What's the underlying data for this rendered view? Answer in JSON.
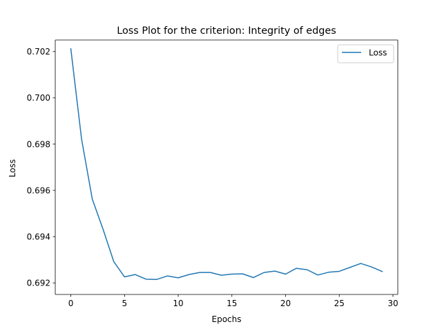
{
  "chart_data": {
    "type": "line",
    "title": "Loss Plot for the criterion: Integrity of edges",
    "xlabel": "Epochs",
    "ylabel": "Loss",
    "xlim": [
      -1.45,
      30.45
    ],
    "ylim": [
      0.6915,
      0.7025
    ],
    "x_ticks": [
      0,
      5,
      10,
      15,
      20,
      25,
      30
    ],
    "x_tick_labels": [
      "0",
      "5",
      "10",
      "15",
      "20",
      "25",
      "30"
    ],
    "y_ticks": [
      0.692,
      0.694,
      0.696,
      0.698,
      0.7,
      0.702
    ],
    "y_tick_labels": [
      "0.692",
      "0.694",
      "0.696",
      "0.698",
      "0.700",
      "0.702"
    ],
    "grid": false,
    "legend_position": "upper right",
    "series": [
      {
        "name": "Loss",
        "color": "#1f77b4",
        "x": [
          0,
          1,
          2,
          3,
          4,
          5,
          6,
          7,
          8,
          9,
          10,
          11,
          12,
          13,
          14,
          15,
          16,
          17,
          18,
          19,
          20,
          21,
          22,
          23,
          24,
          25,
          26,
          27,
          28,
          29
        ],
        "values": [
          0.70212,
          0.69822,
          0.69562,
          0.69432,
          0.69292,
          0.69226,
          0.69236,
          0.69216,
          0.69215,
          0.6923,
          0.69222,
          0.69236,
          0.69245,
          0.69245,
          0.69233,
          0.69238,
          0.69239,
          0.69223,
          0.69245,
          0.69251,
          0.69238,
          0.69263,
          0.69257,
          0.69234,
          0.69246,
          0.6925,
          0.69267,
          0.69284,
          0.69269,
          0.69249
        ]
      }
    ]
  }
}
